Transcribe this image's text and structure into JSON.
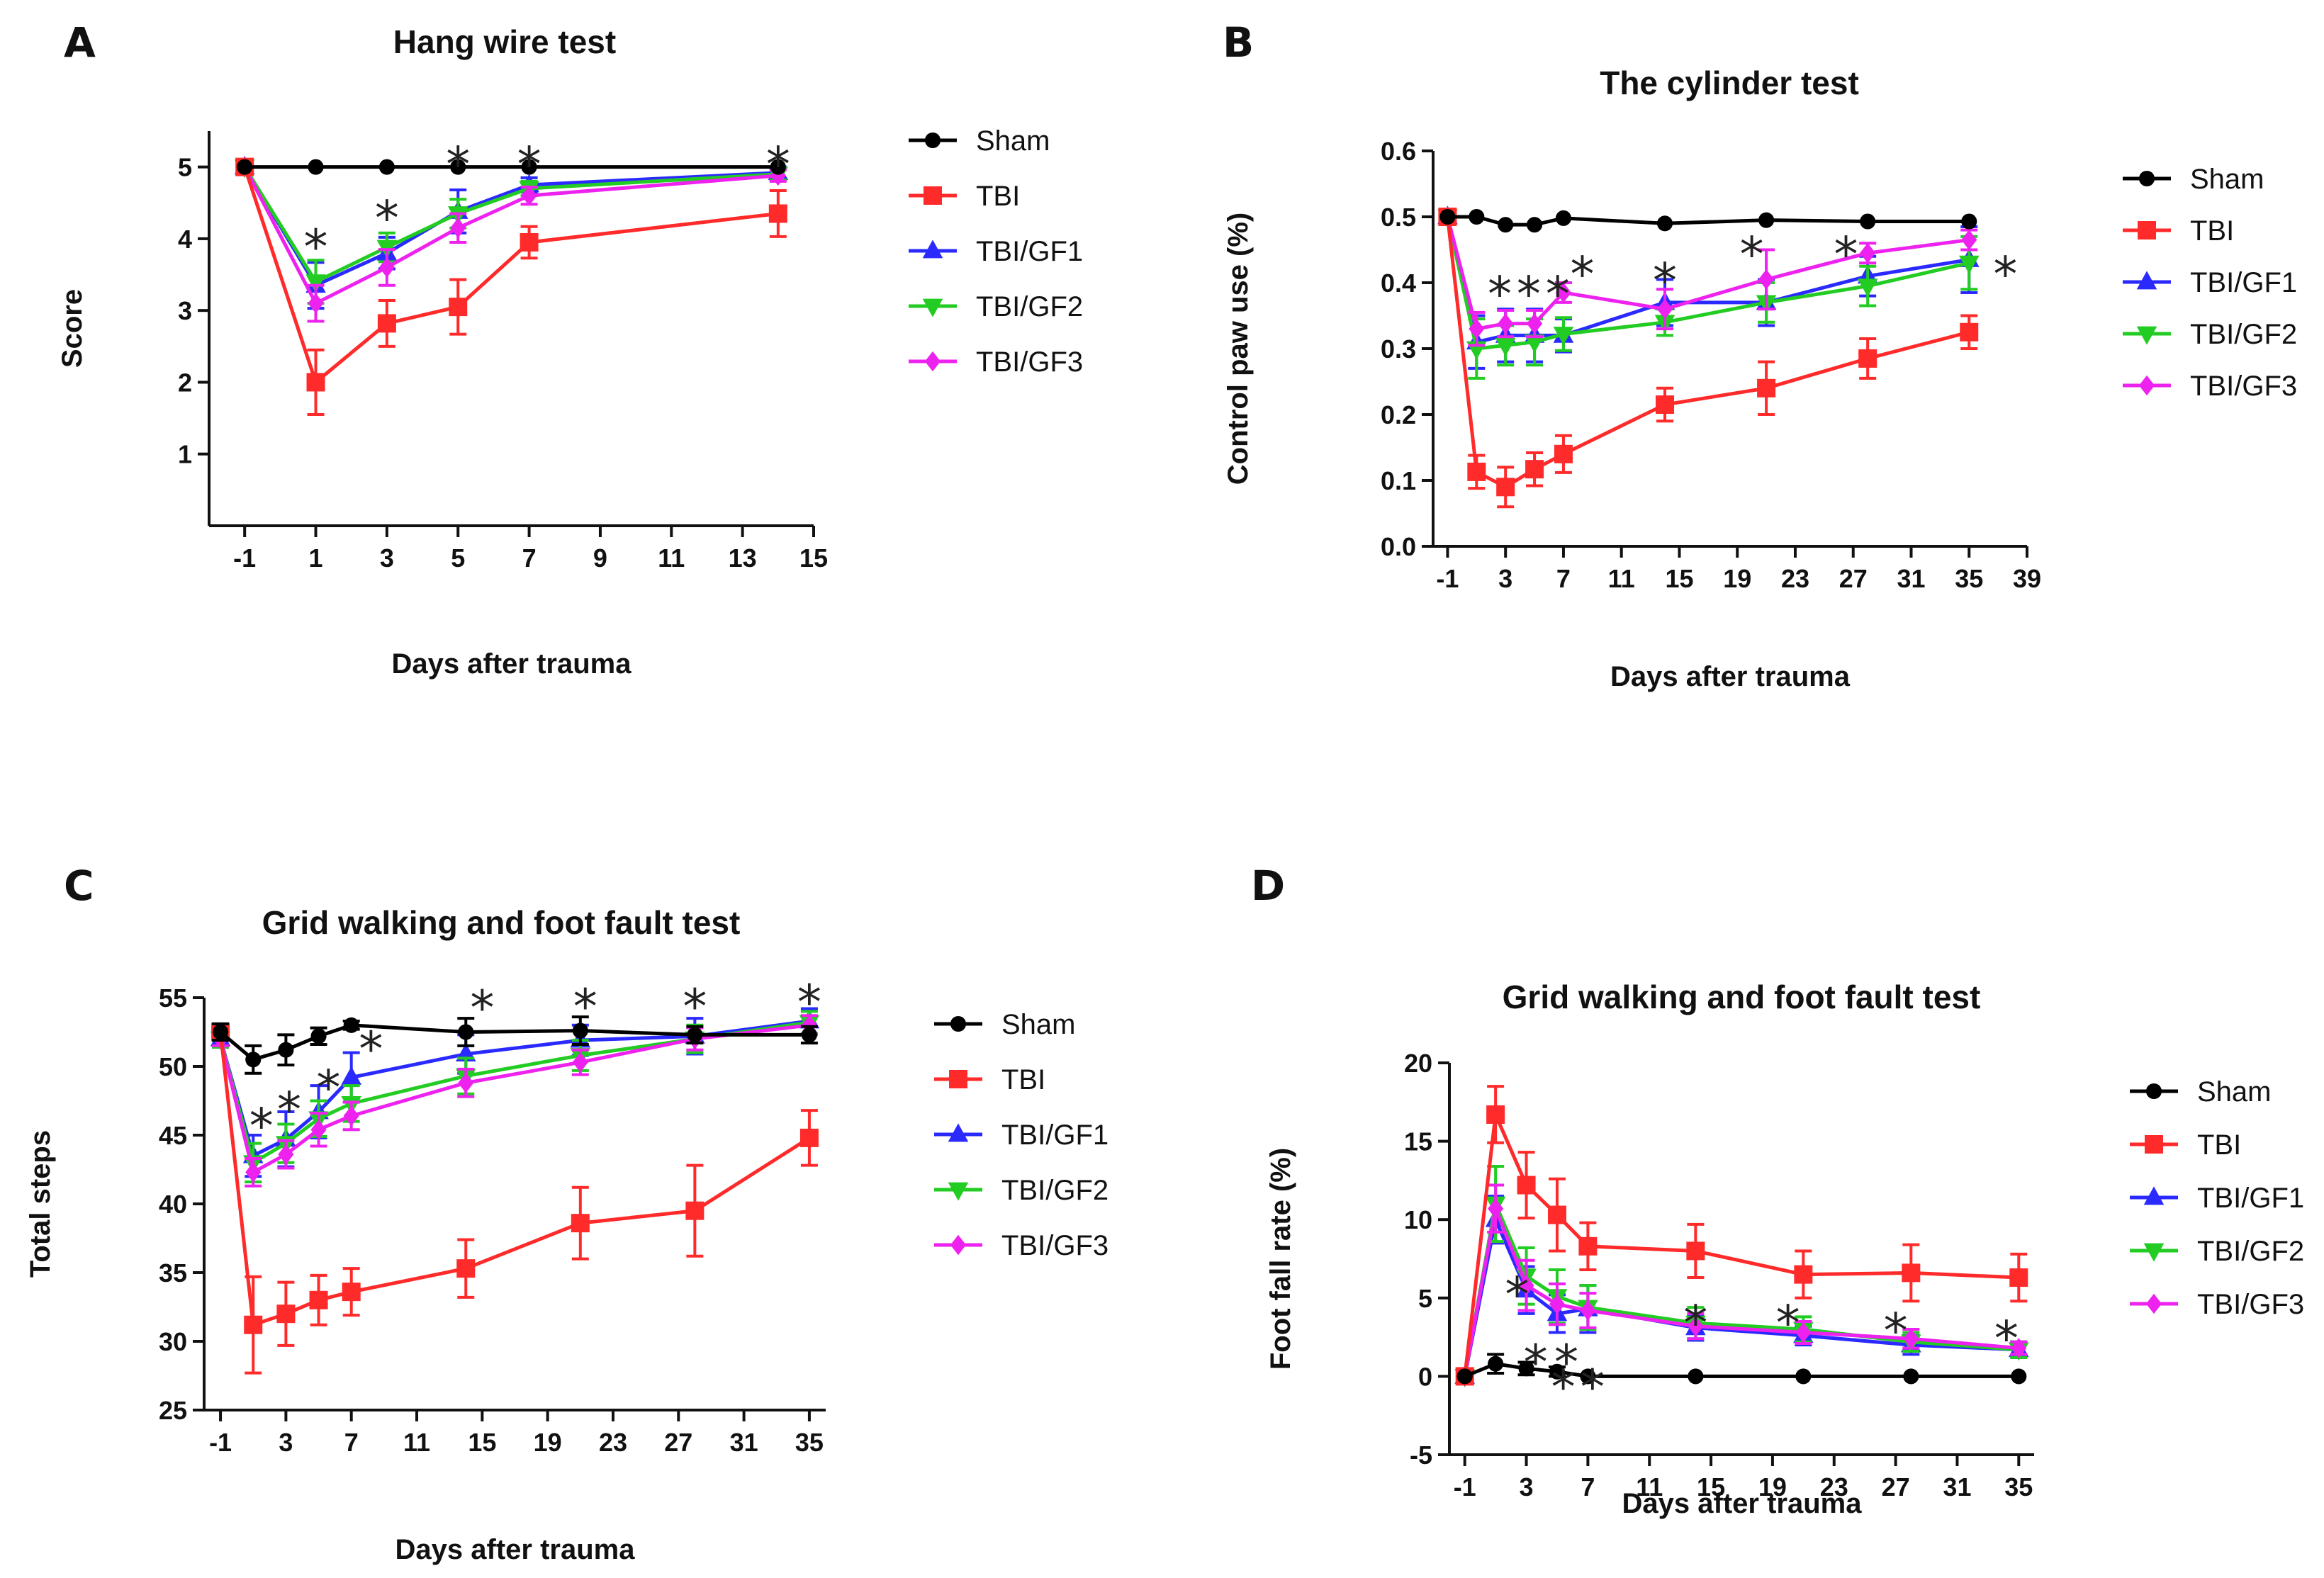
{
  "chart_data": [
    {
      "panel": "A",
      "type": "line",
      "title": "Hang wire test",
      "xlabel": "Days after trauma",
      "ylabel": "Score",
      "xlim": [
        -2,
        15
      ],
      "ylim": [
        0,
        5.5
      ],
      "xticks": [
        -1,
        1,
        3,
        5,
        7,
        9,
        11,
        13,
        15
      ],
      "yticks": [
        1,
        2,
        3,
        4,
        5
      ],
      "x": [
        -1,
        1,
        3,
        5,
        7,
        14
      ],
      "series": [
        {
          "name": "Sham",
          "color": "#000000",
          "marker": "circle",
          "values": [
            5,
            5,
            5,
            5,
            5,
            5
          ],
          "err": [
            0,
            0,
            0,
            0,
            0,
            0
          ]
        },
        {
          "name": "TBI",
          "color": "#ff2a2a",
          "marker": "square",
          "values": [
            5,
            2.0,
            2.82,
            3.05,
            3.95,
            4.35
          ],
          "err": [
            0,
            0.45,
            0.32,
            0.38,
            0.22,
            0.32
          ]
        },
        {
          "name": "TBI/GF1",
          "color": "#2a2aff",
          "marker": "triangle-up",
          "values": [
            5,
            3.35,
            3.8,
            4.38,
            4.75,
            4.92
          ],
          "err": [
            0,
            0.32,
            0.22,
            0.3,
            0.1,
            0.08
          ]
        },
        {
          "name": "TBI/GF2",
          "color": "#22cc22",
          "marker": "triangle-down",
          "values": [
            5,
            3.4,
            3.88,
            4.35,
            4.7,
            4.9
          ],
          "err": [
            0,
            0.3,
            0.2,
            0.2,
            0.1,
            0.08
          ]
        },
        {
          "name": "TBI/GF3",
          "color": "#ee22ee",
          "marker": "diamond",
          "values": [
            5,
            3.1,
            3.6,
            4.15,
            4.6,
            4.88
          ],
          "err": [
            0,
            0.25,
            0.25,
            0.2,
            0.12,
            0.08
          ]
        }
      ],
      "annotations": [
        {
          "text": "*",
          "x": 1,
          "y": 3.95
        },
        {
          "text": "*",
          "x": 3,
          "y": 4.35
        },
        {
          "text": "*",
          "x": 5,
          "y": 5.1
        },
        {
          "text": "*",
          "x": 7,
          "y": 5.1
        },
        {
          "text": "*",
          "x": 14,
          "y": 5.1
        }
      ]
    },
    {
      "panel": "B",
      "type": "line",
      "title": "The cylinder test",
      "xlabel": "Days after trauma",
      "ylabel": "Control paw use (%)",
      "xlim": [
        -2,
        39
      ],
      "ylim": [
        0,
        0.6
      ],
      "xticks": [
        -1,
        3,
        7,
        11,
        15,
        19,
        23,
        27,
        31,
        35,
        39
      ],
      "yticks": [
        "0.0",
        "0.1",
        "0.2",
        "0.3",
        "0.4",
        "0.5",
        "0.6"
      ],
      "x": [
        -1,
        1,
        3,
        5,
        7,
        14,
        21,
        28,
        35
      ],
      "series": [
        {
          "name": "Sham",
          "color": "#000000",
          "marker": "circle",
          "values": [
            0.5,
            0.5,
            0.488,
            0.488,
            0.498,
            0.49,
            0.495,
            0.493,
            0.493
          ],
          "err": [
            0,
            0,
            0,
            0,
            0,
            0,
            0,
            0,
            0
          ]
        },
        {
          "name": "TBI",
          "color": "#ff2a2a",
          "marker": "square",
          "values": [
            0.5,
            0.113,
            0.09,
            0.117,
            0.14,
            0.215,
            0.24,
            0.285,
            0.325
          ],
          "err": [
            0,
            0.025,
            0.03,
            0.025,
            0.028,
            0.025,
            0.04,
            0.03,
            0.025
          ]
        },
        {
          "name": "TBI/GF1",
          "color": "#2a2aff",
          "marker": "triangle-up",
          "values": [
            0.5,
            0.31,
            0.32,
            0.32,
            0.32,
            0.37,
            0.37,
            0.41,
            0.435
          ],
          "err": [
            0,
            0.04,
            0.04,
            0.04,
            0.025,
            0.035,
            0.035,
            0.03,
            0.05
          ]
        },
        {
          "name": "TBI/GF2",
          "color": "#22cc22",
          "marker": "triangle-down",
          "values": [
            0.5,
            0.3,
            0.305,
            0.31,
            0.322,
            0.34,
            0.37,
            0.395,
            0.43
          ],
          "err": [
            0,
            0.045,
            0.03,
            0.035,
            0.025,
            0.02,
            0.03,
            0.03,
            0.04
          ]
        },
        {
          "name": "TBI/GF3",
          "color": "#ee22ee",
          "marker": "diamond",
          "values": [
            0.5,
            0.33,
            0.338,
            0.338,
            0.385,
            0.36,
            0.405,
            0.445,
            0.465
          ],
          "err": [
            0,
            0.025,
            0.02,
            0.02,
            0.015,
            0.03,
            0.045,
            0.015,
            0.015
          ]
        }
      ],
      "annotations": [
        {
          "text": "*",
          "x": 2.6,
          "y": 0.39
        },
        {
          "text": "*",
          "x": 4.6,
          "y": 0.39
        },
        {
          "text": "*",
          "x": 6.6,
          "y": 0.39
        },
        {
          "text": "*",
          "x": 8.3,
          "y": 0.42
        },
        {
          "text": "*",
          "x": 14,
          "y": 0.41
        },
        {
          "text": "*",
          "x": 20,
          "y": 0.45
        },
        {
          "text": "*",
          "x": 26.5,
          "y": 0.45
        },
        {
          "text": "*",
          "x": 37.5,
          "y": 0.42
        }
      ]
    },
    {
      "panel": "C",
      "type": "line",
      "title": "Grid walking and foot fault test",
      "xlabel": "Days after trauma",
      "ylabel": "Total steps",
      "xlim": [
        -2,
        36
      ],
      "ylim": [
        25,
        55
      ],
      "xticks": [
        -1,
        3,
        7,
        11,
        15,
        19,
        23,
        27,
        31,
        35
      ],
      "yticks": [
        25,
        30,
        35,
        40,
        45,
        50,
        55
      ],
      "x": [
        -1,
        1,
        3,
        5,
        7,
        14,
        21,
        28,
        35
      ],
      "series": [
        {
          "name": "Sham",
          "color": "#000000",
          "marker": "circle",
          "values": [
            52.5,
            50.5,
            51.2,
            52.2,
            53.0,
            52.5,
            52.6,
            52.3,
            52.3
          ],
          "err": [
            0.6,
            1.0,
            1.1,
            0.6,
            0.3,
            1.0,
            1.0,
            0.6,
            0.6
          ]
        },
        {
          "name": "TBI",
          "color": "#ff2a2a",
          "marker": "square",
          "values": [
            52.5,
            31.2,
            32.0,
            33.0,
            33.6,
            35.3,
            38.6,
            39.5,
            44.8
          ],
          "err": [
            0.5,
            3.5,
            2.3,
            1.8,
            1.7,
            2.1,
            2.6,
            3.3,
            2.0
          ]
        },
        {
          "name": "TBI/GF1",
          "color": "#2a2aff",
          "marker": "triangle-up",
          "values": [
            52.0,
            43.5,
            44.7,
            46.7,
            49.2,
            50.9,
            51.9,
            52.2,
            53.3
          ],
          "err": [
            0.6,
            1.5,
            2.0,
            1.9,
            1.8,
            1.4,
            1.1,
            1.3,
            0.9
          ]
        },
        {
          "name": "TBI/GF2",
          "color": "#22cc22",
          "marker": "triangle-down",
          "values": [
            52.0,
            43.0,
            44.4,
            46.2,
            47.3,
            49.3,
            50.8,
            52.0,
            53.2
          ],
          "err": [
            0.6,
            1.4,
            1.4,
            1.3,
            1.3,
            1.3,
            1.1,
            1.0,
            0.8
          ]
        },
        {
          "name": "TBI/GF3",
          "color": "#ee22ee",
          "marker": "diamond",
          "values": [
            52.0,
            42.3,
            43.6,
            45.4,
            46.4,
            48.8,
            50.3,
            52.0,
            53.0
          ],
          "err": [
            0.5,
            1.0,
            1.0,
            1.2,
            1.0,
            1.0,
            0.9,
            0.8,
            0.7
          ]
        }
      ],
      "annotations": [
        {
          "text": "*",
          "x": 1.5,
          "y": 46.0
        },
        {
          "text": "*",
          "x": 3.2,
          "y": 47.2
        },
        {
          "text": "*",
          "x": 5.6,
          "y": 48.8
        },
        {
          "text": "*",
          "x": 8.2,
          "y": 51.6
        },
        {
          "text": "*",
          "x": 15,
          "y": 54.6
        },
        {
          "text": "*",
          "x": 21.3,
          "y": 54.7
        },
        {
          "text": "*",
          "x": 28,
          "y": 54.7
        },
        {
          "text": "*",
          "x": 35,
          "y": 55.0
        }
      ]
    },
    {
      "panel": "D",
      "type": "line",
      "title": "Grid walking and foot fault test",
      "xlabel": "Days after trauma",
      "ylabel": "Foot fall rate (%)",
      "xlim": [
        -2,
        36
      ],
      "ylim": [
        -5,
        20
      ],
      "xticks": [
        -1,
        3,
        7,
        11,
        15,
        19,
        23,
        27,
        31,
        35
      ],
      "yticks": [
        -5,
        0,
        5,
        10,
        15,
        20
      ],
      "x": [
        -1,
        1,
        3,
        5,
        7,
        14,
        21,
        28,
        35
      ],
      "series": [
        {
          "name": "Sham",
          "color": "#000000",
          "marker": "circle",
          "values": [
            0,
            0.8,
            0.5,
            0.3,
            0,
            0,
            0,
            0,
            0
          ],
          "err": [
            0,
            0.6,
            0.4,
            0.3,
            0,
            0,
            0,
            0,
            0
          ]
        },
        {
          "name": "TBI",
          "color": "#ff2a2a",
          "marker": "square",
          "values": [
            0,
            16.7,
            12.2,
            10.3,
            8.3,
            8.0,
            6.5,
            6.6,
            6.3
          ],
          "err": [
            0,
            1.8,
            2.1,
            2.3,
            1.5,
            1.7,
            1.5,
            1.8,
            1.5
          ]
        },
        {
          "name": "TBI/GF1",
          "color": "#2a2aff",
          "marker": "triangle-up",
          "values": [
            0,
            10.0,
            5.5,
            4.0,
            4.3,
            3.1,
            2.6,
            2.0,
            1.7
          ],
          "err": [
            0,
            1.5,
            1.5,
            1.2,
            1.5,
            0.8,
            0.6,
            0.6,
            0.5
          ]
        },
        {
          "name": "TBI/GF2",
          "color": "#22cc22",
          "marker": "triangle-down",
          "values": [
            0,
            11.0,
            6.4,
            5.1,
            4.4,
            3.4,
            3.0,
            2.2,
            1.7
          ],
          "err": [
            0,
            2.4,
            1.8,
            1.7,
            1.4,
            1.0,
            0.8,
            0.6,
            0.5
          ]
        },
        {
          "name": "TBI/GF3",
          "color": "#ee22ee",
          "marker": "diamond",
          "values": [
            0,
            10.7,
            5.8,
            4.6,
            4.2,
            3.2,
            2.8,
            2.4,
            1.8
          ],
          "err": [
            0,
            1.5,
            1.6,
            1.3,
            1.1,
            0.8,
            0.7,
            0.6,
            0.4
          ]
        }
      ],
      "annotations": [
        {
          "text": "*",
          "x": 2.4,
          "y": 5.5
        },
        {
          "text": "*",
          "x": 3.6,
          "y": 1.2
        },
        {
          "text": "*",
          "x": 5.4,
          "y": -0.4
        },
        {
          "text": "*",
          "x": 5.6,
          "y": 1.2
        },
        {
          "text": "*",
          "x": 7.3,
          "y": -0.4
        },
        {
          "text": "*",
          "x": 14,
          "y": 3.7
        },
        {
          "text": "*",
          "x": 20,
          "y": 3.7
        },
        {
          "text": "*",
          "x": 27,
          "y": 3.2
        },
        {
          "text": "*",
          "x": 34.2,
          "y": 2.7
        }
      ]
    }
  ]
}
